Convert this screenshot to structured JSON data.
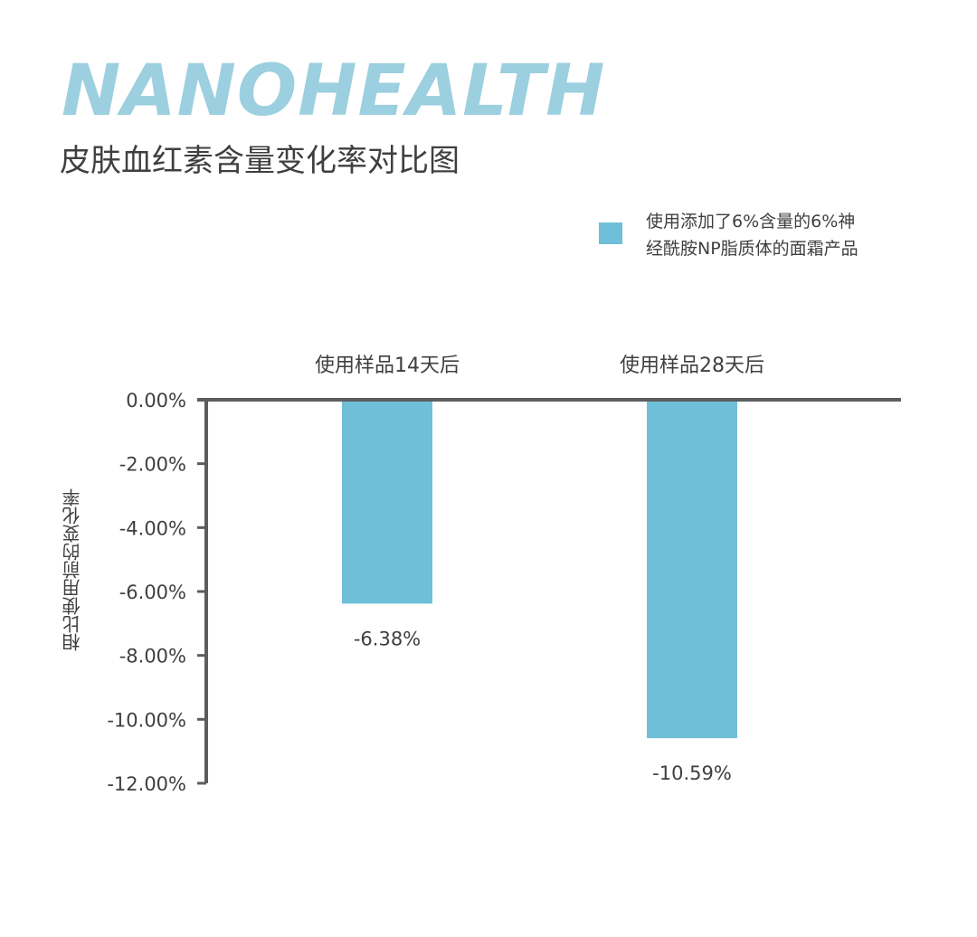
{
  "header": {
    "brand": "NANOHEALTH",
    "title": "皮肤血红素含量变化率对比图"
  },
  "legend": {
    "text": "使用添加了6%含量的6%神经酰胺NP脂质体的面霜产品",
    "color": "#6fbfd8"
  },
  "chart_data": {
    "type": "bar",
    "categories": [
      "使用样品14天后",
      "使用样品28天后"
    ],
    "series": [
      {
        "name": "使用添加了6%含量的6%神经酰胺NP脂质体的面霜产品",
        "values": [
          -6.38,
          -10.59
        ]
      }
    ],
    "data_labels": [
      "-6.38%",
      "-10.59%"
    ],
    "ylabel": "相比使用前的变化率",
    "ylim": [
      -12,
      0
    ],
    "yticks": [
      0,
      -2,
      -4,
      -6,
      -8,
      -10,
      -12
    ],
    "ytick_labels": [
      "0.00%",
      "-2.00%",
      "-4.00%",
      "-6.00%",
      "-8.00%",
      "-10.00%",
      "-12.00%"
    ],
    "x_axis_position": "top",
    "legend_position": "top-right",
    "grid": false,
    "bar_color": "#6fbfd8",
    "axis_color": "#5a5e60"
  }
}
